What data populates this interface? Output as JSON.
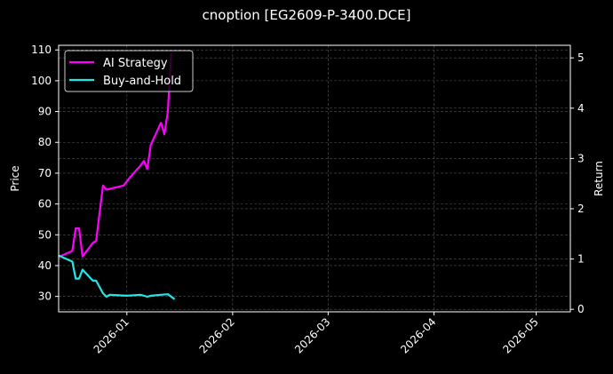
{
  "title": "cnoption [EG2609-P-3400.DCE]",
  "chart_data": {
    "type": "line",
    "title": "cnoption [EG2609-P-3400.DCE]",
    "xlabel": "",
    "ylabel_left": "Price",
    "ylabel_right": "Return",
    "x_ticks": [
      "2026-01",
      "2026-02",
      "2026-03",
      "2026-04",
      "2026-05"
    ],
    "y_left_ticks": [
      30,
      40,
      50,
      60,
      70,
      80,
      90,
      100,
      110
    ],
    "y_right_ticks": [
      0,
      1,
      2,
      3,
      4,
      5
    ],
    "y_left_range": [
      25,
      111.5
    ],
    "y_right_range": [
      -0.05,
      5.25
    ],
    "x_range": [
      "2025-12-12",
      "2026-05-11"
    ],
    "grid": true,
    "legend_position": "upper left",
    "legend": [
      "AI Strategy",
      "Buy-and-Hold"
    ],
    "series": [
      {
        "name": "AI Strategy",
        "color": "#ff00ff",
        "axis": "right",
        "x": [
          "2025-12-12",
          "2025-12-15",
          "2025-12-16",
          "2025-12-17",
          "2025-12-18",
          "2025-12-19",
          "2025-12-22",
          "2025-12-23",
          "2025-12-25",
          "2025-12-26",
          "2025-12-31",
          "2026-01-02",
          "2026-01-05",
          "2026-01-06",
          "2026-01-07",
          "2026-01-08",
          "2026-01-11",
          "2026-01-12",
          "2026-01-13",
          "2026-01-14"
        ],
        "values": [
          1.04,
          1.13,
          1.16,
          1.61,
          1.61,
          1.05,
          1.32,
          1.36,
          2.46,
          2.38,
          2.46,
          2.63,
          2.86,
          2.95,
          2.79,
          3.27,
          3.71,
          3.48,
          3.93,
          5.09
        ]
      },
      {
        "name": "Buy-and-Hold",
        "color": "#22e5e5",
        "axis": "right",
        "x": [
          "2025-12-12",
          "2025-12-15",
          "2025-12-16",
          "2025-12-17",
          "2025-12-18",
          "2025-12-19",
          "2025-12-22",
          "2025-12-23",
          "2025-12-25",
          "2025-12-26",
          "2025-12-27",
          "2026-01-01",
          "2026-01-05",
          "2026-01-07",
          "2026-01-08",
          "2026-01-11",
          "2026-01-13",
          "2026-01-15"
        ],
        "values": [
          1.07,
          0.98,
          0.95,
          0.61,
          0.61,
          0.79,
          0.57,
          0.57,
          0.32,
          0.25,
          0.29,
          0.27,
          0.29,
          0.25,
          0.27,
          0.29,
          0.3,
          0.2
        ]
      }
    ]
  },
  "colors": {
    "background": "#000000",
    "axes": "#ffffff",
    "grid": "#555555",
    "strategy": "#ff00ff",
    "buyhold": "#22e5e5"
  }
}
